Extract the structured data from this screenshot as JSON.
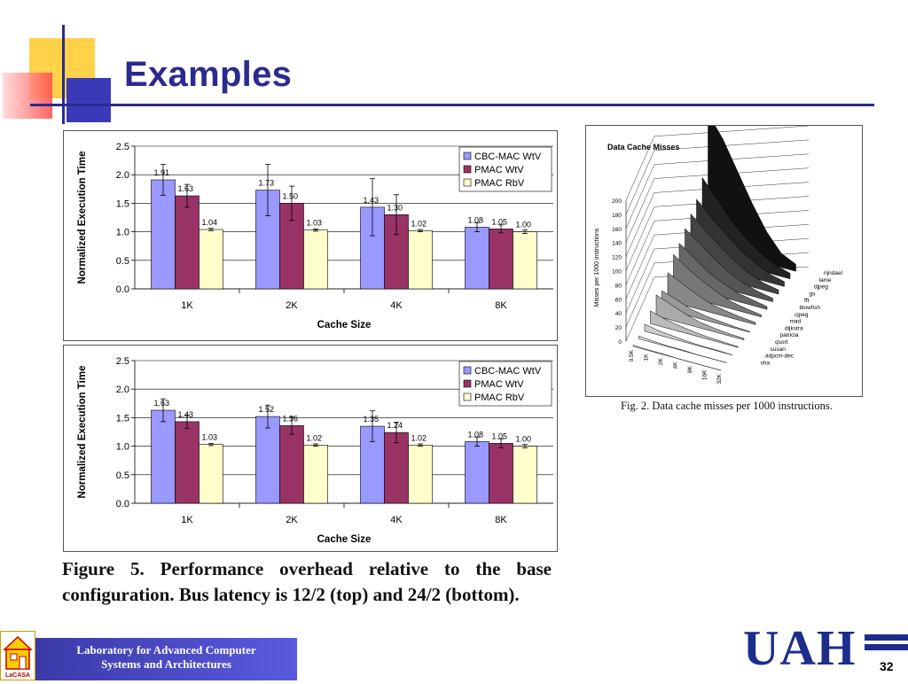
{
  "slide": {
    "title": "Examples",
    "page_number": "32",
    "caption": "Figure 5. Performance overhead relative to the base configuration. Bus latency is 12/2 (top) and 24/2 (bottom).",
    "right_figure_caption": "Fig. 2. Data cache misses per 1000 instructions.",
    "lab_name_line1": "Laboratory for Advanced Computer",
    "lab_name_line2": "Systems and Architectures",
    "lab_logo_text": "LaCASA",
    "university_logo": "UAH",
    "colors": {
      "title": "#2b2b8f",
      "cbc": "#9999ff",
      "pmac_wtv": "#993366",
      "pmac_rbv": "#ffffcc"
    }
  },
  "chart_data": [
    {
      "type": "bar",
      "title": "",
      "xlabel": "Cache Size",
      "ylabel": "Normalized Execution Time",
      "ylim": [
        0,
        2.5
      ],
      "yticks": [
        "0.0",
        "0.5",
        "1.0",
        "1.5",
        "2.0",
        "2.5"
      ],
      "categories": [
        "1K",
        "2K",
        "4K",
        "8K"
      ],
      "series": [
        {
          "name": "CBC-MAC WtV",
          "values": [
            1.91,
            1.73,
            1.43,
            1.08
          ],
          "labels": [
            "1.91",
            "1.73",
            "1.43",
            "1.08"
          ],
          "err": [
            0.27,
            0.45,
            0.5,
            0.08
          ],
          "color": "#9999ff"
        },
        {
          "name": "PMAC WtV",
          "values": [
            1.63,
            1.5,
            1.3,
            1.05
          ],
          "labels": [
            "1.63",
            "1.50",
            "1.30",
            "1.05"
          ],
          "err": [
            0.2,
            0.3,
            0.35,
            0.07
          ],
          "color": "#993366"
        },
        {
          "name": "PMAC RbV",
          "values": [
            1.04,
            1.03,
            1.02,
            1.0
          ],
          "labels": [
            "1.04",
            "1.03",
            "1.02",
            "1.00"
          ],
          "err": [
            0.02,
            0.02,
            0.02,
            0.03
          ],
          "color": "#ffffcc"
        }
      ],
      "legend": "top-right",
      "grid": true
    },
    {
      "type": "bar",
      "title": "",
      "xlabel": "Cache Size",
      "ylabel": "Normalized Execution Time",
      "ylim": [
        0,
        2.5
      ],
      "yticks": [
        "0.0",
        "0.5",
        "1.0",
        "1.5",
        "2.0",
        "2.5"
      ],
      "categories": [
        "1K",
        "2K",
        "4K",
        "8K"
      ],
      "series": [
        {
          "name": "CBC-MAC WtV",
          "values": [
            1.63,
            1.52,
            1.35,
            1.08
          ],
          "labels": [
            "1.63",
            "1.52",
            "1.35",
            "1.08"
          ],
          "err": [
            0.2,
            0.2,
            0.27,
            0.08
          ],
          "color": "#9999ff"
        },
        {
          "name": "PMAC WtV",
          "values": [
            1.43,
            1.36,
            1.24,
            1.05
          ],
          "labels": [
            "1.43",
            "1.36",
            "1.24",
            "1.05"
          ],
          "err": [
            0.12,
            0.15,
            0.18,
            0.08
          ],
          "color": "#993366"
        },
        {
          "name": "PMAC RbV",
          "values": [
            1.03,
            1.02,
            1.02,
            1.0
          ],
          "labels": [
            "1.03",
            "1.02",
            "1.02",
            "1.00"
          ],
          "err": [
            0.02,
            0.02,
            0.02,
            0.03
          ],
          "color": "#ffffcc"
        }
      ],
      "legend": "top-right",
      "grid": true
    },
    {
      "type": "area",
      "title": "Data Cache Misses",
      "ylabel": "Misses per 1000 instructions",
      "ylim": [
        0,
        200
      ],
      "yticks": [
        "0",
        "20",
        "40",
        "60",
        "80",
        "100",
        "120",
        "140",
        "160",
        "180",
        "200"
      ],
      "x": [
        "0.5K",
        "1K",
        "2K",
        "4K",
        "8K",
        "16K",
        "32K"
      ],
      "series": [
        {
          "name": "sha",
          "values": [
            2,
            1,
            1,
            0,
            0,
            0,
            0
          ]
        },
        {
          "name": "adpcm-dec",
          "values": [
            4,
            2,
            1,
            1,
            0,
            0,
            0
          ]
        },
        {
          "name": "susan",
          "values": [
            10,
            6,
            4,
            2,
            1,
            1,
            0
          ]
        },
        {
          "name": "qsort",
          "values": [
            18,
            12,
            8,
            5,
            3,
            2,
            1
          ]
        },
        {
          "name": "patricia",
          "values": [
            30,
            22,
            14,
            8,
            5,
            3,
            2
          ]
        },
        {
          "name": "dijkstra",
          "values": [
            25,
            18,
            10,
            6,
            4,
            2,
            1
          ]
        },
        {
          "name": "mad",
          "values": [
            40,
            30,
            20,
            12,
            8,
            5,
            3
          ]
        },
        {
          "name": "cjpeg",
          "values": [
            55,
            40,
            28,
            18,
            10,
            6,
            3
          ]
        },
        {
          "name": "blowfish",
          "values": [
            60,
            45,
            30,
            20,
            12,
            8,
            4
          ]
        },
        {
          "name": "fft",
          "values": [
            70,
            55,
            38,
            25,
            15,
            9,
            5
          ]
        },
        {
          "name": "gs",
          "values": [
            80,
            62,
            45,
            30,
            18,
            10,
            6
          ]
        },
        {
          "name": "djpeg",
          "values": [
            90,
            70,
            52,
            35,
            22,
            12,
            7
          ]
        },
        {
          "name": "lame",
          "values": [
            110,
            85,
            60,
            40,
            25,
            14,
            8
          ]
        },
        {
          "name": "rijndael",
          "values": [
            190,
            160,
            120,
            80,
            45,
            20,
            10
          ]
        }
      ],
      "series_labels_right": [
        "rijndael",
        "lame",
        "djpeg",
        "gs",
        "fft",
        "blowfish",
        "cjpeg",
        "mad",
        "dijkstra",
        "patricia",
        "qsort",
        "susan",
        "adpcm-dec",
        "sha"
      ]
    }
  ]
}
